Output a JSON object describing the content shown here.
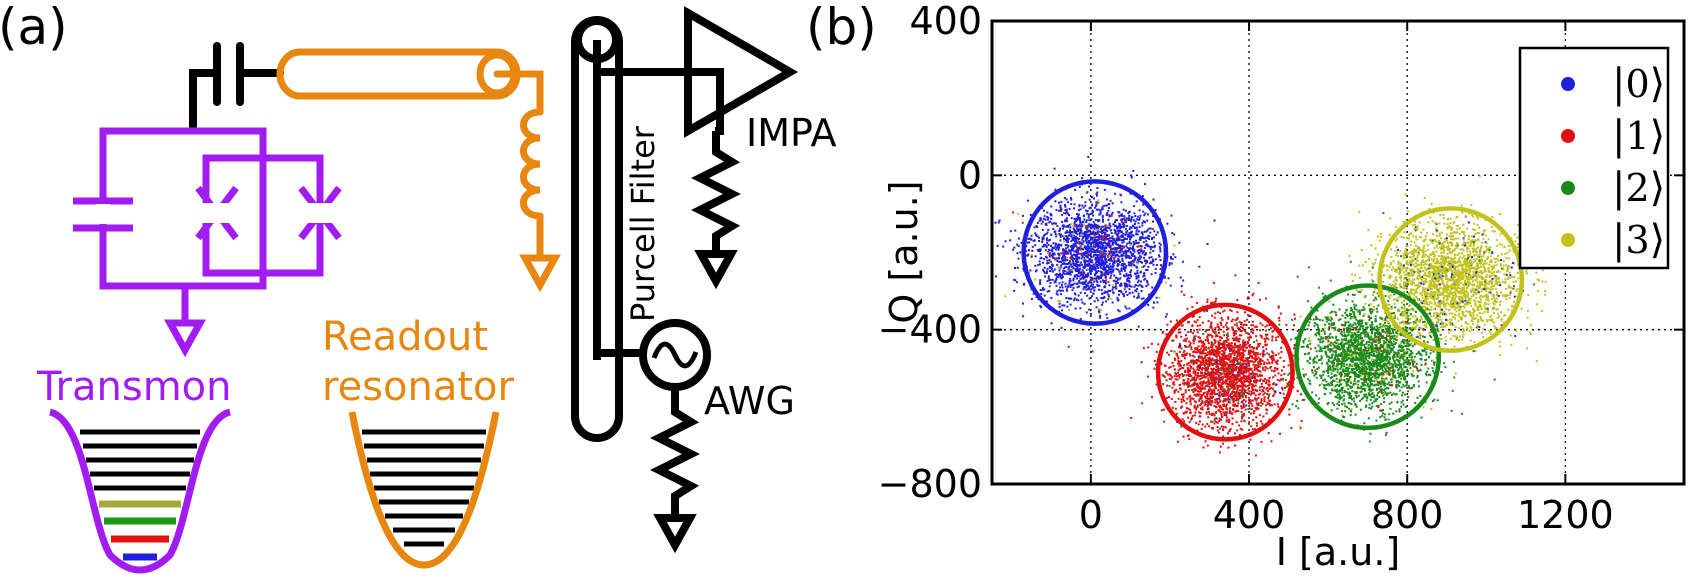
{
  "panel_a": {
    "label": "(a)",
    "transmon_label": "Transmon",
    "readout_label_line1": "Readout",
    "readout_label_line2": "resonator",
    "purcell_label": "Purcell Filter",
    "impa_label": "IMPA",
    "awg_label": "AWG",
    "colors": {
      "transmon": "#a21cf2",
      "resonator": "#e8870f",
      "circuit": "#000000",
      "level_0": "#1f1fe0",
      "level_1": "#e01010",
      "level_2": "#1a9a1a",
      "level_3": "#a8a83c"
    }
  },
  "chart_data": {
    "type": "scatter",
    "panel_label": "(b)",
    "xlabel": "I [a.u.]",
    "ylabel": "Q [a.u.]",
    "xlim": [
      -250,
      1500
    ],
    "ylim": [
      -800,
      400
    ],
    "xticks": [
      0,
      400,
      800,
      1200
    ],
    "yticks": [
      400,
      0,
      -400,
      -800
    ],
    "xtick_labels": [
      "0",
      "400",
      "800",
      "1200"
    ],
    "ytick_labels": [
      "400",
      "0",
      "−400",
      "−800"
    ],
    "grid": true,
    "legend_position": "top-right",
    "series": [
      {
        "name": "|0⟩",
        "ket_digit": "0",
        "color": "#1f1fe0",
        "center": [
          10,
          -200
        ],
        "std": [
          80,
          65
        ],
        "circle_radius": 180,
        "circle_color": "#1f1fe0"
      },
      {
        "name": "|1⟩",
        "ket_digit": "1",
        "color": "#e01010",
        "center": [
          340,
          -510
        ],
        "std": [
          70,
          70
        ],
        "circle_radius": 170,
        "circle_color": "#e01010"
      },
      {
        "name": "|2⟩",
        "ket_digit": "2",
        "color": "#1a8a1a",
        "center": [
          700,
          -470
        ],
        "std": [
          75,
          65
        ],
        "circle_radius": 180,
        "circle_color": "#1a8a1a"
      },
      {
        "name": "|3⟩",
        "ket_digit": "3",
        "color": "#c2c21a",
        "center": [
          910,
          -270
        ],
        "std": [
          85,
          70
        ],
        "circle_radius": 180,
        "circle_color": "#c2c21a"
      }
    ]
  }
}
